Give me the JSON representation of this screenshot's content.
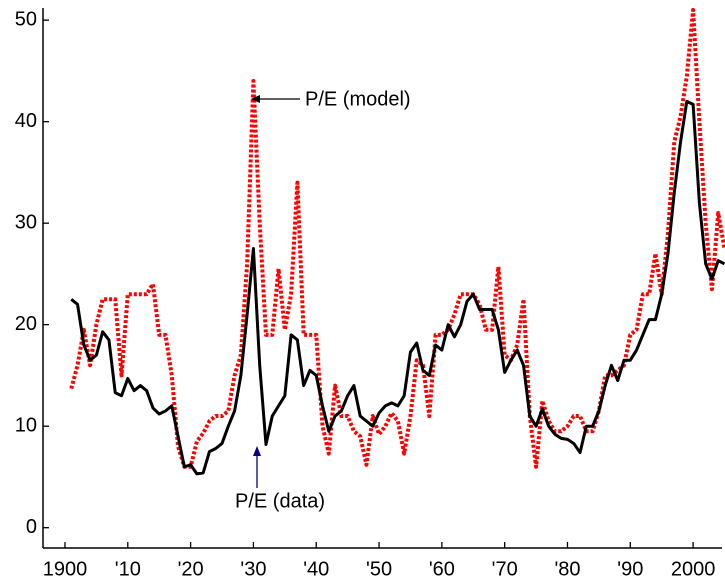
{
  "chart_data": {
    "type": "line",
    "x": [
      1901,
      1902,
      1903,
      1904,
      1905,
      1906,
      1907,
      1908,
      1909,
      1910,
      1911,
      1912,
      1913,
      1914,
      1915,
      1916,
      1917,
      1918,
      1919,
      1920,
      1921,
      1922,
      1923,
      1924,
      1925,
      1926,
      1927,
      1928,
      1929,
      1930,
      1931,
      1932,
      1933,
      1934,
      1935,
      1936,
      1937,
      1938,
      1939,
      1940,
      1941,
      1942,
      1943,
      1944,
      1945,
      1946,
      1947,
      1948,
      1949,
      1950,
      1951,
      1952,
      1953,
      1954,
      1955,
      1956,
      1957,
      1958,
      1959,
      1960,
      1961,
      1962,
      1963,
      1964,
      1965,
      1966,
      1967,
      1968,
      1969,
      1970,
      1971,
      1972,
      1973,
      1974,
      1975,
      1976,
      1977,
      1978,
      1979,
      1980,
      1981,
      1982,
      1983,
      1984,
      1985,
      1986,
      1987,
      1988,
      1989,
      1990,
      1991,
      1992,
      1993,
      1994,
      1995,
      1996,
      1997,
      1998,
      1999,
      2000,
      2001,
      2002,
      2003,
      2004,
      2005
    ],
    "series": [
      {
        "color": "#000000",
        "dash": "solid",
        "values": [
          22.5,
          22,
          18,
          16.5,
          17,
          19.3,
          18.5,
          13.3,
          13,
          14.7,
          13.5,
          14,
          13.5,
          11.8,
          11.2,
          11.5,
          12,
          9,
          6,
          6.2,
          5.3,
          5.4,
          7.5,
          7.8,
          8.3,
          10,
          11.5,
          15,
          21,
          27.5,
          16,
          8.2,
          11,
          12,
          13,
          19,
          18.5,
          14,
          15.5,
          15,
          12,
          9.5,
          11,
          11.5,
          13,
          14,
          11,
          10.5,
          10,
          11.3,
          12,
          12.3,
          12,
          13,
          17.3,
          18.2,
          15.5,
          15,
          18,
          17.5,
          20,
          18.8,
          20,
          22.3,
          23,
          21.5,
          21.5,
          21.5,
          19.5,
          15.3,
          16.5,
          17.5,
          16,
          11,
          10,
          11.7,
          10,
          9.2,
          8.8,
          8.7,
          8.3,
          7.4,
          10,
          10,
          11.5,
          14,
          16,
          14.5,
          16.5,
          16.5,
          17.5,
          19,
          20.5,
          20.5,
          23,
          27,
          33,
          38,
          42,
          41.7,
          32,
          26,
          24.5,
          26.3,
          26
        ]
      },
      {
        "color": "#ff0000",
        "dash": "dotted",
        "values": [
          13.7,
          16,
          19.5,
          16,
          20,
          22.5,
          22.5,
          22.5,
          15,
          23,
          23,
          23,
          23,
          24,
          19,
          19,
          15,
          8,
          6,
          6,
          8.5,
          9.3,
          10.5,
          11,
          11,
          11.5,
          15,
          17,
          26,
          44,
          30,
          19,
          19,
          25.5,
          19.5,
          23,
          34,
          19,
          19,
          19,
          10,
          7.3,
          14,
          11,
          11,
          9.5,
          9,
          6.2,
          11,
          9.2,
          10,
          11.3,
          10.5,
          7.3,
          11,
          16.5,
          16,
          11,
          19,
          19,
          19.5,
          21,
          23,
          23,
          23,
          22,
          19.5,
          19.5,
          25.7,
          17,
          16.5,
          18,
          22.5,
          11,
          6,
          12.5,
          10.5,
          9.5,
          9.5,
          10,
          11,
          11,
          9.5,
          9.5,
          11.5,
          15,
          15,
          15.5,
          16,
          19,
          19.5,
          23,
          23,
          27,
          23,
          29,
          38,
          40.5,
          44.5,
          51,
          40,
          30,
          23.5,
          31,
          27.5
        ]
      }
    ],
    "annotations": [
      {
        "text": "P/E (model)"
      },
      {
        "text": "P/E (data)"
      }
    ],
    "xlim": [
      1896.5,
      2004.6
    ],
    "ylim": [
      -2,
      51
    ],
    "xticks": [
      {
        "value": 1900,
        "label": "1900"
      },
      {
        "value": 1910,
        "label": "'10"
      },
      {
        "value": 1920,
        "label": "'20"
      },
      {
        "value": 1930,
        "label": "'30"
      },
      {
        "value": 1940,
        "label": "'40"
      },
      {
        "value": 1950,
        "label": "'50"
      },
      {
        "value": 1960,
        "label": "'60"
      },
      {
        "value": 1970,
        "label": "'70"
      },
      {
        "value": 1980,
        "label": "'80"
      },
      {
        "value": 1990,
        "label": "'90"
      },
      {
        "value": 2000,
        "label": "2000"
      }
    ],
    "yticks": [
      0,
      10,
      20,
      30,
      40,
      50
    ]
  }
}
